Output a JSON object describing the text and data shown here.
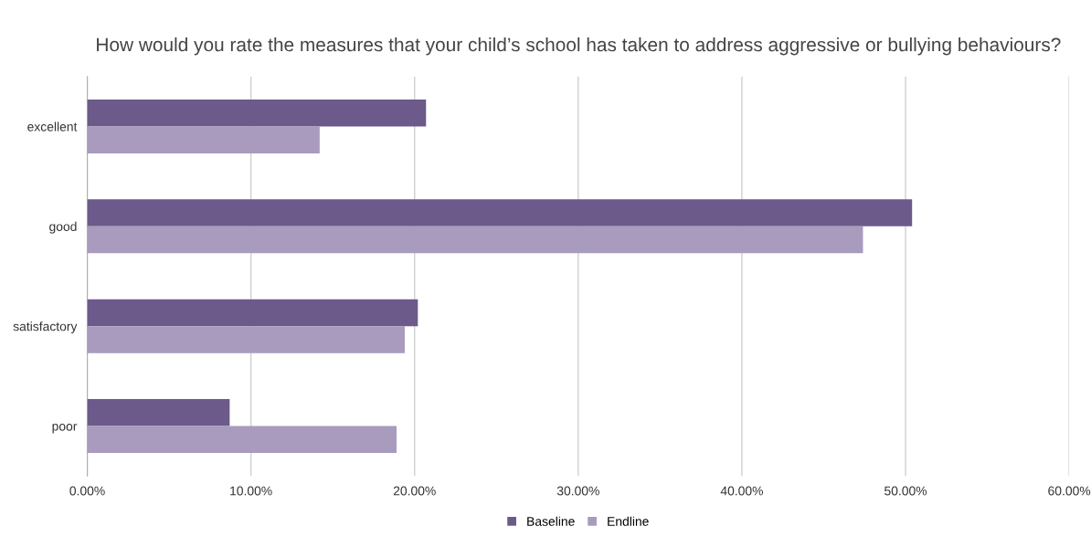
{
  "chart_data": {
    "type": "bar",
    "orientation": "horizontal",
    "title": "How would you rate the measures that your child’s school has taken to address aggressive or bullying behaviours?",
    "categories": [
      "excellent",
      "good",
      "satisfactory",
      "poor"
    ],
    "series": [
      {
        "name": "Baseline",
        "color": "#6b5a8a",
        "values": [
          20.7,
          50.4,
          20.2,
          8.7
        ]
      },
      {
        "name": "Endline",
        "color": "#a89bbd",
        "values": [
          14.2,
          47.4,
          19.4,
          18.9
        ]
      }
    ],
    "xlim": [
      0,
      60
    ],
    "xticks": [
      {
        "value": 0,
        "label": "0.00%"
      },
      {
        "value": 10,
        "label": "10.00%"
      },
      {
        "value": 20,
        "label": "20.00%"
      },
      {
        "value": 30,
        "label": "30.00%"
      },
      {
        "value": 40,
        "label": "40.00%"
      },
      {
        "value": 50,
        "label": "50.00%"
      },
      {
        "value": 60,
        "label": "60.00%"
      }
    ],
    "grid": "x",
    "legend": "bottom"
  }
}
